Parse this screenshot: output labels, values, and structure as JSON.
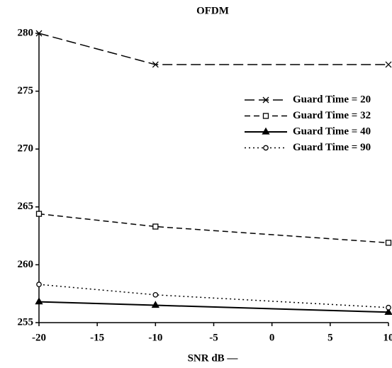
{
  "chart_data": {
    "type": "line",
    "title": "OFDM",
    "x_label": "SNR dB ––",
    "x": [
      -20,
      -10,
      10
    ],
    "series": [
      {
        "name": "Guard Time = 20",
        "color": "#000000",
        "linestyle": "long-dash",
        "marker": "x",
        "values": [
          280,
          277.3,
          277.3
        ]
      },
      {
        "name": "Guard Time = 32",
        "color": "#000000",
        "linestyle": "dashed",
        "marker": "square",
        "values": [
          264.4,
          263.3,
          261.9
        ]
      },
      {
        "name": "Guard Time = 40",
        "color": "#000000",
        "linestyle": "solid",
        "marker": "triangle",
        "values": [
          256.8,
          256.5,
          255.9
        ]
      },
      {
        "name": "Guard Time = 90",
        "color": "#000000",
        "linestyle": "dotted",
        "marker": "circle",
        "values": [
          258.3,
          257.4,
          256.3
        ]
      }
    ],
    "xlim": [
      -20,
      10
    ],
    "xticks": [
      -20,
      -15,
      -10,
      -5,
      0,
      5,
      10
    ],
    "ylim": [
      255,
      280
    ],
    "yticks": [
      255,
      260,
      265,
      270,
      275,
      280
    ],
    "legend": "upper right"
  }
}
